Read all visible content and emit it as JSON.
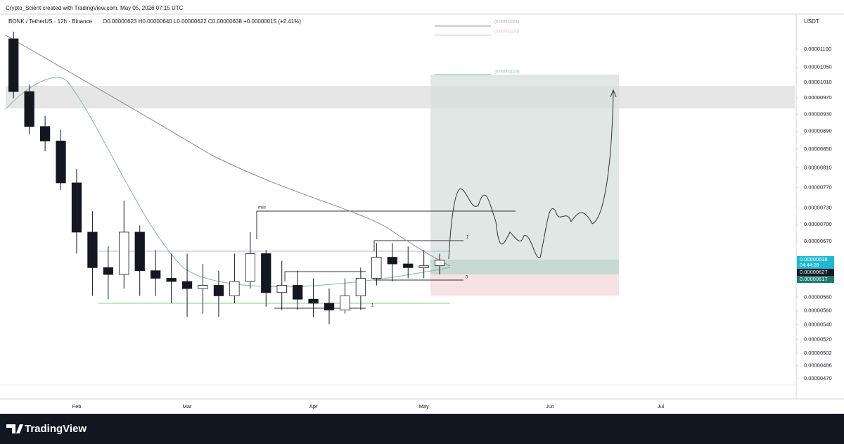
{
  "chart_data": {
    "type": "candlestick",
    "watermark": "Crypto_Scient created with TradingView.com, May 05, 2026 07:15 UTC",
    "title": "BONK / TetherUS · 12h · Binance",
    "ohlc_text": "O0.00000623 H0.00000640 L0.00000622 C0.00000638 +0.00000015 (+2.41%)",
    "currency": "USDT",
    "brand": "TradingView",
    "categories": [
      null,
      null,
      null,
      null,
      "Feb",
      null,
      null,
      null,
      null,
      null,
      null,
      "Mar",
      null,
      null,
      null,
      null,
      null,
      null,
      null,
      "Apr",
      null,
      null,
      null,
      null,
      null,
      null,
      "May",
      null,
      null,
      null,
      null,
      null,
      null,
      null,
      "Jun",
      null,
      null,
      null,
      null,
      null,
      null,
      "Jul",
      null,
      null,
      null,
      null,
      null,
      null,
      null,
      null
    ],
    "open": [
      1.13e-05,
      9.86e-06,
      9.01e-06,
      8.68e-06,
      7.79e-06,
      6.86e-06,
      6.26e-06,
      6.15e-06,
      6.86e-06,
      6.21e-06,
      6.09e-06,
      6.04e-06,
      5.93e-06,
      5.98e-06,
      5.82e-06,
      6.04e-06,
      6.49e-06,
      5.87e-06,
      5.98e-06,
      5.77e-06,
      5.71e-06,
      5.61e-06,
      5.82e-06,
      6.09e-06,
      6.43e-06,
      6.32e-06,
      6.26e-06,
      6.29e-06,
      null,
      null,
      null,
      null,
      null,
      null,
      null,
      null,
      null,
      null,
      null,
      null,
      null,
      null,
      null,
      null,
      null,
      null,
      null,
      null,
      null,
      null
    ],
    "high": [
      1.151e-05,
      1.004e-05,
      9.26e-06,
      8.93e-06,
      8.08e-06,
      7.24e-06,
      6.61e-06,
      7.44e-06,
      6.98e-06,
      6.55e-06,
      6.49e-06,
      6.49e-06,
      6.32e-06,
      6.21e-06,
      6.49e-06,
      6.86e-06,
      6.55e-06,
      6.37e-06,
      6.21e-06,
      6.09e-06,
      5.93e-06,
      6.09e-06,
      6.26e-06,
      6.67e-06,
      6.67e-06,
      6.61e-06,
      6.55e-06,
      6.49e-06,
      null,
      null,
      null,
      null,
      null,
      null,
      null,
      null,
      null,
      null,
      null,
      null,
      null,
      null,
      null,
      null,
      null,
      null,
      null,
      null,
      null,
      null
    ],
    "low": [
      9.69e-06,
      8.84e-06,
      8.45e-06,
      7.65e-06,
      6.49e-06,
      5.82e-06,
      5.77e-06,
      5.93e-06,
      5.82e-06,
      5.82e-06,
      5.71e-06,
      5.51e-06,
      5.56e-06,
      5.51e-06,
      5.71e-06,
      5.93e-06,
      5.66e-06,
      5.61e-06,
      5.61e-06,
      5.51e-06,
      5.41e-06,
      5.56e-06,
      5.61e-06,
      5.98e-06,
      6.04e-06,
      6.09e-06,
      6.09e-06,
      6.15e-06,
      null,
      null,
      null,
      null,
      null,
      null,
      null,
      null,
      null,
      null,
      null,
      null,
      null,
      null,
      null,
      null,
      null,
      null,
      null,
      null,
      null,
      null
    ],
    "close": [
      9.86e-06,
      9.01e-06,
      8.68e-06,
      7.79e-06,
      6.86e-06,
      6.26e-06,
      6.15e-06,
      6.86e-06,
      6.21e-06,
      6.09e-06,
      6.04e-06,
      5.93e-06,
      5.98e-06,
      5.82e-06,
      6.04e-06,
      6.49e-06,
      5.87e-06,
      5.98e-06,
      5.77e-06,
      5.71e-06,
      5.61e-06,
      5.82e-06,
      6.09e-06,
      6.43e-06,
      6.32e-06,
      6.26e-06,
      6.29e-06,
      6.38e-06,
      null,
      null,
      null,
      null,
      null,
      null,
      null,
      null,
      null,
      null,
      null,
      null,
      null,
      null,
      null,
      null,
      null,
      null,
      null,
      null,
      null,
      null
    ],
    "up_color": "#ffffff",
    "down_color": "#131722",
    "log_scale": true,
    "ylim": [
      4.46e-06,
      1.2e-05
    ],
    "yticks": [
      {
        "value": 1.1e-05,
        "label": "0.00001100"
      },
      {
        "value": 1.05e-05,
        "label": "0.00001050"
      },
      {
        "value": 1.01e-05,
        "label": "0.00001010"
      },
      {
        "value": 9.7e-06,
        "label": "0.00000970"
      },
      {
        "value": 9.3e-06,
        "label": "0.00000930"
      },
      {
        "value": 8.9e-06,
        "label": "0.00000890"
      },
      {
        "value": 8.5e-06,
        "label": "0.00000850"
      },
      {
        "value": 8.1e-06,
        "label": "0.00000810"
      },
      {
        "value": 7.7e-06,
        "label": "0.00000770"
      },
      {
        "value": 7.3e-06,
        "label": "0.00000730"
      },
      {
        "value": 7e-06,
        "label": "0.00000700"
      },
      {
        "value": 6.7e-06,
        "label": "0.00000670"
      },
      {
        "value": 5.8e-06,
        "label": "0.00000580"
      },
      {
        "value": 5.6e-06,
        "label": "0.00000560"
      },
      {
        "value": 5.4e-06,
        "label": "0.00000540"
      },
      {
        "value": 5.2e-06,
        "label": "0.00000520"
      },
      {
        "value": 5.02e-06,
        "label": "0.00000502"
      },
      {
        "value": 4.86e-06,
        "label": "0.00000486"
      },
      {
        "value": 4.7e-06,
        "label": "0.00000470"
      }
    ],
    "price_labels": [
      "0.00000638",
      "04:44:28",
      "0.00000627",
      "0.00000617"
    ],
    "annotations": [
      "mss",
      "1",
      "0",
      "1",
      "(0.00001161)",
      "(0.00001133)",
      "(0.00001023)"
    ]
  }
}
